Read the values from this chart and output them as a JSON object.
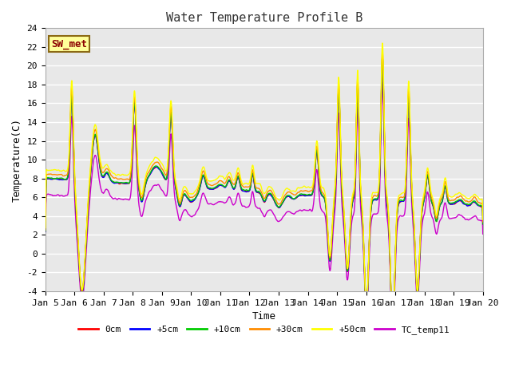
{
  "title": "Water Temperature Profile B",
  "xlabel": "Time",
  "ylabel": "Temperature(C)",
  "ylim": [
    -4,
    24
  ],
  "yticks": [
    -4,
    -2,
    0,
    2,
    4,
    6,
    8,
    10,
    12,
    14,
    16,
    18,
    20,
    22,
    24
  ],
  "annotation_text": "SW_met",
  "annotation_color": "#8B0000",
  "annotation_bg": "#FFFF99",
  "annotation_border": "#8B6914",
  "series_colors": {
    "0cm": "#FF0000",
    "+5cm": "#0000FF",
    "+10cm": "#00CC00",
    "+30cm": "#FF8C00",
    "+50cm": "#FFFF00",
    "TC_temp11": "#CC00CC"
  },
  "series_order": [
    "0cm",
    "+5cm",
    "+10cm",
    "+30cm",
    "+50cm",
    "TC_temp11"
  ],
  "x_tick_labels": [
    "Jan 5",
    "Jan 6",
    "Jan 7",
    "Jan 8",
    "Jan 9",
    "Jan 10",
    "Jan 11",
    "Jan 12",
    "Jan 13",
    "Jan 14",
    "Jan 15",
    "Jan 16",
    "Jan 17",
    "Jan 18",
    "Jan 19",
    "Jan 20"
  ],
  "bg_color": "#E8E8E8",
  "grid_color": "#FFFFFF",
  "linewidth": 1.0,
  "title_fontsize": 11,
  "label_fontsize": 9,
  "tick_fontsize": 8,
  "legend_fontsize": 8
}
